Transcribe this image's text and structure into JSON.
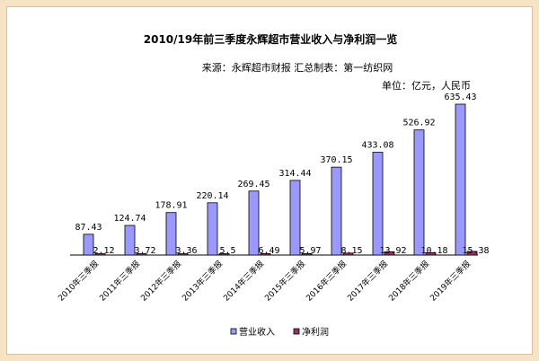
{
  "chart_data": {
    "type": "bar",
    "title": "2010/19年前三季度永辉超市营业收入与净利润一览",
    "source": "来源：永辉超市财报  汇总制表：第一纺织网",
    "unit": "单位：亿元，人民币",
    "categories": [
      "2010年三季报",
      "2011年三季报",
      "2012年三季报",
      "2013年三季报",
      "2014年三季报",
      "2015年三季报",
      "2016年三季报",
      "2017年三季报",
      "2018年三季报",
      "2019年三季报"
    ],
    "series": [
      {
        "name": "营业收入",
        "values": [
          87.43,
          124.74,
          178.91,
          220.14,
          269.45,
          314.44,
          370.15,
          433.08,
          526.92,
          635.43
        ],
        "labels": [
          "87.43",
          "124.74",
          "178.91",
          "220.14",
          "269.45",
          "314.44",
          "370.15",
          "433.08",
          "526.92",
          "635.43"
        ],
        "color": "#9999ff"
      },
      {
        "name": "净利润",
        "values": [
          2.12,
          3.72,
          3.36,
          5.5,
          6.49,
          5.97,
          8.15,
          13.92,
          10.18,
          15.38
        ],
        "labels": [
          "2.12",
          "3.72",
          "3.36",
          "5.5",
          "6.49",
          "5.97",
          "8.15",
          "13.92",
          "10.18",
          "15.38"
        ],
        "color": "#993366"
      }
    ],
    "ylim": [
      0,
      700
    ],
    "grid": false,
    "legend": "bottom"
  }
}
